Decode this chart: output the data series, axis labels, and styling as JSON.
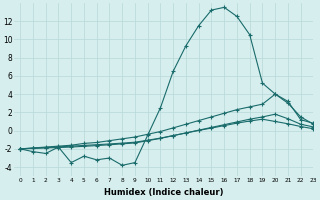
{
  "xlabel": "Humidex (Indice chaleur)",
  "ylabel": "",
  "background_color": "#d6eeee",
  "grid_color": "#b8d8d8",
  "line_color": "#1a6b6b",
  "x_values": [
    0,
    1,
    2,
    3,
    4,
    5,
    6,
    7,
    8,
    9,
    10,
    11,
    12,
    13,
    14,
    15,
    16,
    17,
    18,
    19,
    20,
    21,
    22,
    23
  ],
  "series1": [
    -2,
    -2.3,
    -2.5,
    -1.8,
    -3.5,
    -2.8,
    -3.2,
    -3.0,
    -3.8,
    -3.5,
    -0.5,
    2.5,
    6.5,
    9.3,
    11.5,
    13.2,
    13.5,
    12.5,
    10.5,
    5.2,
    4.0,
    3.2,
    1.2,
    0.8
  ],
  "series2": [
    -2.0,
    -1.9,
    -1.8,
    -1.7,
    -1.6,
    -1.4,
    -1.3,
    -1.1,
    -0.9,
    -0.7,
    -0.4,
    -0.1,
    0.3,
    0.7,
    1.1,
    1.5,
    1.9,
    2.3,
    2.6,
    2.9,
    4.0,
    3.0,
    1.5,
    0.7
  ],
  "series3": [
    -2.0,
    -1.95,
    -1.9,
    -1.85,
    -1.8,
    -1.72,
    -1.64,
    -1.55,
    -1.45,
    -1.35,
    -1.1,
    -0.85,
    -0.55,
    -0.25,
    0.05,
    0.35,
    0.65,
    0.95,
    1.25,
    1.5,
    1.8,
    1.3,
    0.7,
    0.4
  ],
  "series4": [
    -2.0,
    -1.92,
    -1.85,
    -1.78,
    -1.7,
    -1.62,
    -1.54,
    -1.46,
    -1.37,
    -1.27,
    -1.05,
    -0.82,
    -0.54,
    -0.26,
    0.02,
    0.28,
    0.55,
    0.82,
    1.05,
    1.25,
    1.0,
    0.75,
    0.45,
    0.2
  ],
  "ylim": [
    -5,
    14
  ],
  "xlim": [
    -0.5,
    23
  ],
  "yticks": [
    -4,
    -2,
    0,
    2,
    4,
    6,
    8,
    10,
    12
  ],
  "xticks": [
    0,
    1,
    2,
    3,
    4,
    5,
    6,
    7,
    8,
    9,
    10,
    11,
    12,
    13,
    14,
    15,
    16,
    17,
    18,
    19,
    20,
    21,
    22,
    23
  ]
}
